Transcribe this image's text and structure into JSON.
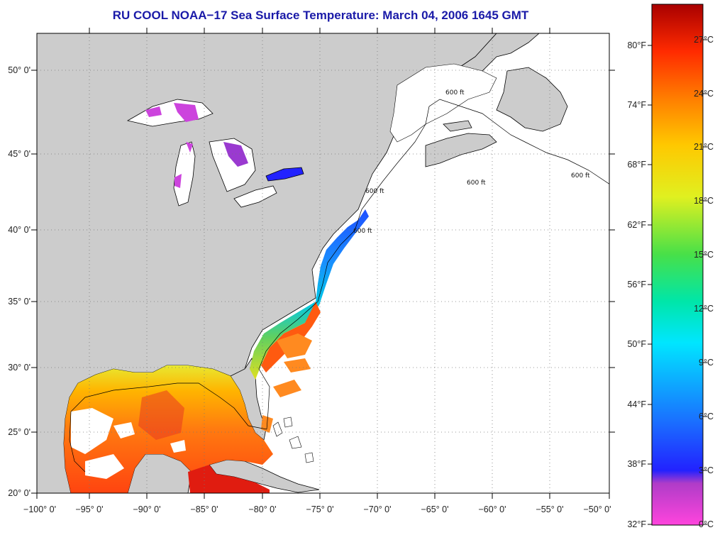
{
  "title": "RU COOL  NOAA−17  Sea Surface Temperature:  March 04, 2006 1645 GMT",
  "map": {
    "lon_ticks": [
      "−100° 0'",
      "−95° 0'",
      "−90° 0'",
      "−85° 0'",
      "−80° 0'",
      "−75° 0'",
      "−70° 0'",
      "−65° 0'",
      "−60° 0'",
      "−55° 0'",
      "−50° 0'"
    ],
    "lat_ticks": [
      "50° 0'",
      "45° 0'",
      "40° 0'",
      "35° 0'",
      "30° 0'",
      "25° 0'",
      "20° 0'"
    ],
    "contour_label": "600 ft",
    "colors": {
      "land": "#cccccc",
      "no_data": "#ffffff",
      "grid": "#888888",
      "frame": "#000000"
    }
  },
  "colorbar": {
    "fahrenheit": [
      "80°F",
      "74°F",
      "68°F",
      "62°F",
      "56°F",
      "50°F",
      "44°F",
      "38°F",
      "32°F"
    ],
    "celsius": [
      "27°C",
      "24°C",
      "21°C",
      "18°C",
      "15°C",
      "12°C",
      "9°C",
      "6°C",
      "3°C",
      "0°C"
    ],
    "stops": [
      "#ff44dd",
      "#b03cc8",
      "#2222ff",
      "#1a70ff",
      "#00c8ff",
      "#00e6a8",
      "#48e048",
      "#e0f020",
      "#ffc800",
      "#ff7d00",
      "#ff2a00",
      "#a80000"
    ]
  }
}
